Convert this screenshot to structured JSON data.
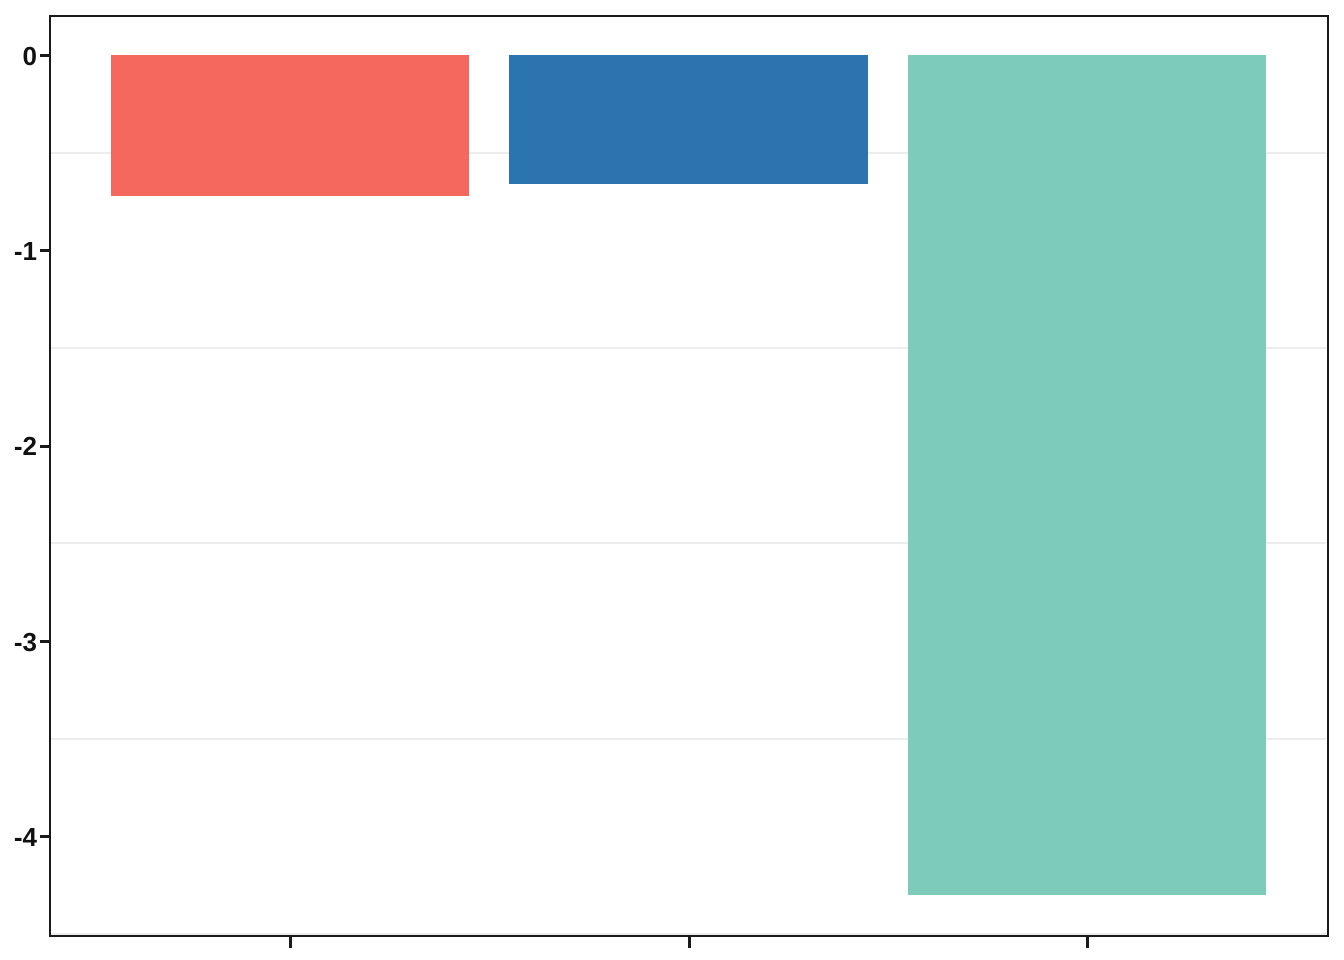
{
  "chart_data": {
    "type": "bar",
    "title": "",
    "xlabel": "",
    "ylabel": "",
    "categories": [
      "",
      "",
      ""
    ],
    "values": [
      -0.72,
      -0.66,
      -4.3
    ],
    "bar_colors": [
      "#F5685D",
      "#2B74AF",
      "#7DCBB9"
    ],
    "baseline": 0,
    "ylim": [
      0.195,
      -4.5
    ],
    "y_ticks": [
      0,
      -1,
      -2,
      -3,
      -4
    ],
    "y_tick_labels": [
      "0",
      "-1",
      "-2",
      "-3",
      "-4"
    ],
    "minor_gridlines": [
      -0.5,
      -1.5,
      -2.5,
      -3.5,
      -4.5
    ],
    "grid": "horizontal minor gridlines only, behind bars",
    "legend": "none",
    "x_axis_labels_visible": false,
    "x_positions": [
      1,
      2,
      3
    ],
    "x_range": [
      0.4,
      3.6
    ],
    "bar_width_units": 0.9,
    "colors": {
      "axis": "#1a1a1a",
      "grid": "#ededed",
      "plot_background": "#ffffff",
      "tick_label": "#111111"
    }
  }
}
